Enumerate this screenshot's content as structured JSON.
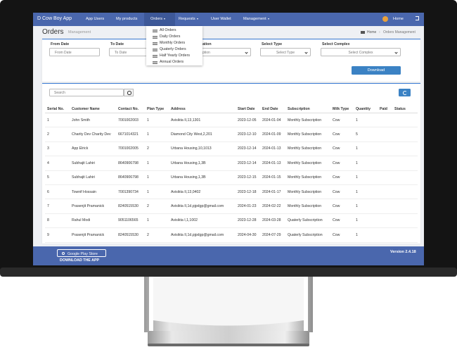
{
  "nav": {
    "brand": "D Cow Boy App",
    "items": [
      "App Users",
      "My products",
      "Orders",
      "Requests",
      "User Wallet",
      "Management"
    ],
    "home": "Home"
  },
  "dropdown": [
    "All Orders",
    "Daily Orders",
    "Monthly Orders",
    "Quaterly Orders",
    "Half Yearly Orders",
    "Annual Orders"
  ],
  "header": {
    "title": "Orders",
    "subtitle": "Management",
    "breadcrumb": [
      "Home",
      "Orders Management"
    ]
  },
  "filters": {
    "labels": [
      "From Date",
      "To Date",
      "Subscription Duration",
      "Select Type",
      "Select Complex"
    ],
    "placeholders": [
      "From Date",
      "To Date",
      "Select Subscription",
      "Select Type",
      "Select Complex"
    ],
    "button": "Download"
  },
  "table": {
    "search": "Search",
    "headers": [
      "Serial No.",
      "Customer Name",
      "Contact No.",
      "Plan Type",
      "Address",
      "Start Date",
      "End Date",
      "Subscription",
      "Milk Type",
      "Quantity",
      "Paid",
      "Status"
    ],
    "rows": [
      [
        "1",
        "John Smith",
        "7001002003",
        "1",
        "Avisikta II,13,1301",
        "2023-12-05",
        "2024-01-04",
        "Monthly Subscription",
        "Cow",
        "1"
      ],
      [
        "2",
        "Charity Dev Charity Dev",
        "6671014321",
        "1",
        "Diamond City West,2,201",
        "2023-12-10",
        "2024-01-09",
        "Monthly Subscription",
        "Cow",
        "5"
      ],
      [
        "3",
        "App Elrick",
        "7001002005",
        "2",
        "Urbana Housing,10,1013",
        "2023-12-14",
        "2024-01-13",
        "Monthly Subscription",
        "Cow",
        "1"
      ],
      [
        "4",
        "Subhajit Lahiri",
        "8640906798",
        "1",
        "Urbana Housing,1,3B",
        "2023-12-14",
        "2024-01-13",
        "Monthly Subscription",
        "Cow",
        "1"
      ],
      [
        "5",
        "Subhajit Lahiri",
        "8640906798",
        "1",
        "Urbana Housing,1,3B",
        "2023-12-15",
        "2024-01-15",
        "Monthly Subscription",
        "Cow",
        "1"
      ],
      [
        "6",
        "Townif Hossain",
        "7001390734",
        "1",
        "Avisikta II,13,0402",
        "2023-12-18",
        "2024-01-17",
        "Monthly Subscription",
        "Cow",
        "1"
      ],
      [
        "7",
        "Prasenjit Pramanick",
        "8240515530",
        "2",
        "Avisikta II,1d,pjpdgp@gmail.com",
        "2024-01-23",
        "2024-02-22",
        "Monthly Subscription",
        "Cow",
        "1"
      ],
      [
        "8",
        "Rahul Modi",
        "9051106565",
        "1",
        "Avisikta I,1,1002",
        "2023-12-28",
        "2024-03-28",
        "Quaterly Subscription",
        "Cow",
        "1"
      ],
      [
        "9",
        "Prasenjit Pramanick",
        "8240515530",
        "2",
        "Avisikta II,1d,pjpdgp@gmail.com",
        "2024-04-30",
        "2024-07-29",
        "Quaterly Subscription",
        "Cow",
        "1"
      ]
    ]
  },
  "footer": {
    "store": "Google Play Store",
    "download": "DOWNLOAD THE APP",
    "version": "Version 2.4.18"
  }
}
